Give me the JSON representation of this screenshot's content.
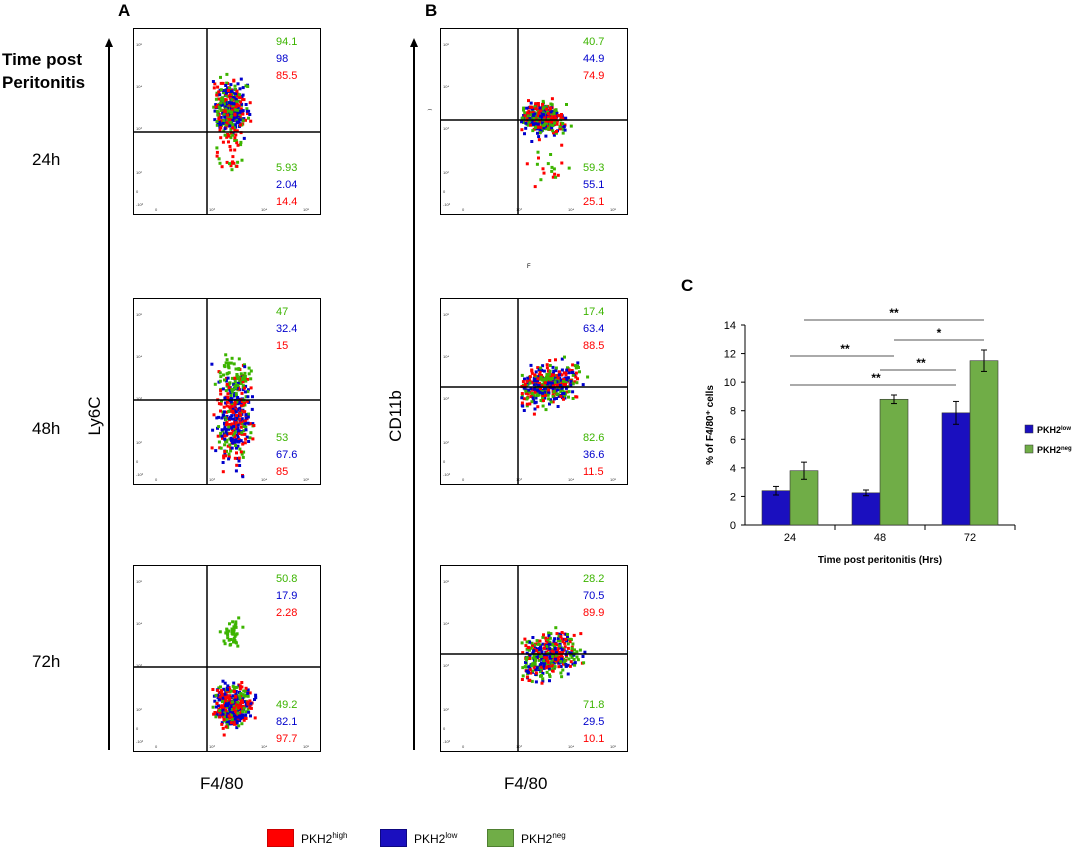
{
  "panels": {
    "a": "A",
    "b": "B",
    "c": "C"
  },
  "row_title": "Time post\nPeritonitis",
  "rows": [
    "24h",
    "48h",
    "72h"
  ],
  "axis_labels": {
    "ly6c": "Ly6C",
    "cd11b": "CD11b",
    "f4_80": "F4/80"
  },
  "stray_marks": {
    "top_right_y": "͡",
    "top_right_x": "F"
  },
  "tick_labels": {
    "y": [
      "10⁵",
      "10⁴",
      "10³",
      "10²",
      "0",
      "-10²"
    ],
    "x": [
      "0",
      "10³",
      "10⁴",
      "10⁵"
    ]
  },
  "colors": {
    "high": "#ff0000",
    "low": "#0000cc",
    "neg": "#3cb400"
  },
  "flow_panels": [
    {
      "id": "A-24h",
      "upper": [
        "94.1",
        "98",
        "85.5"
      ],
      "lower": [
        "5.93",
        "2.04",
        "14.4"
      ]
    },
    {
      "id": "A-48h",
      "upper": [
        "47",
        "32.4",
        "15"
      ],
      "lower": [
        "53",
        "67.6",
        "85"
      ]
    },
    {
      "id": "A-72h",
      "upper": [
        "50.8",
        "17.9",
        "2.28"
      ],
      "lower": [
        "49.2",
        "82.1",
        "97.7"
      ]
    },
    {
      "id": "B-24h",
      "upper": [
        "40.7",
        "44.9",
        "74.9"
      ],
      "lower": [
        "59.3",
        "55.1",
        "25.1"
      ]
    },
    {
      "id": "B-48h",
      "upper": [
        "17.4",
        "63.4",
        "88.5"
      ],
      "lower": [
        "82.6",
        "36.6",
        "11.5"
      ]
    },
    {
      "id": "B-72h",
      "upper": [
        "28.2",
        "70.5",
        "89.9"
      ],
      "lower": [
        "71.8",
        "29.5",
        "10.1"
      ]
    }
  ],
  "legend_bottom": [
    {
      "key": "high",
      "base": "PKH2",
      "sup": "high",
      "color": "#ff0000",
      "border": "#cc0000"
    },
    {
      "key": "low",
      "base": "PKH2",
      "sup": "low",
      "color": "#1a0fbf",
      "border": "#0d0780"
    },
    {
      "key": "neg",
      "base": "PKH2",
      "sup": "neg",
      "color": "#70ad47",
      "border": "#4f7f31"
    }
  ],
  "chart_data": {
    "type": "bar",
    "title": "",
    "xlabel": "Time post peritonitis (Hrs)",
    "ylabel": "% of F4/80⁺ cells",
    "categories": [
      "24",
      "48",
      "72"
    ],
    "ylim": [
      0,
      14
    ],
    "yticks": [
      0,
      2,
      4,
      6,
      8,
      10,
      12,
      14
    ],
    "series": [
      {
        "name": "PKH2low",
        "legend_base": "PKH2",
        "legend_sup": "low",
        "color": "#1a0fbf",
        "values": [
          2.4,
          2.25,
          7.85
        ],
        "errors": [
          0.3,
          0.2,
          0.8
        ]
      },
      {
        "name": "PKH2neg",
        "legend_base": "PKH2",
        "legend_sup": "neg",
        "color": "#70ad47",
        "values": [
          3.8,
          8.8,
          11.5
        ],
        "errors": [
          0.6,
          0.3,
          0.75
        ]
      }
    ],
    "significance": [
      {
        "label": "**",
        "from": "24",
        "to": "72"
      },
      {
        "label": "*",
        "from": "48",
        "to": "72"
      },
      {
        "label": "**",
        "from": "24",
        "to": "48"
      },
      {
        "label": "**",
        "from": "48",
        "to": "72"
      },
      {
        "label": "**",
        "from": "24",
        "to": "72"
      }
    ],
    "legend_position": "right"
  }
}
